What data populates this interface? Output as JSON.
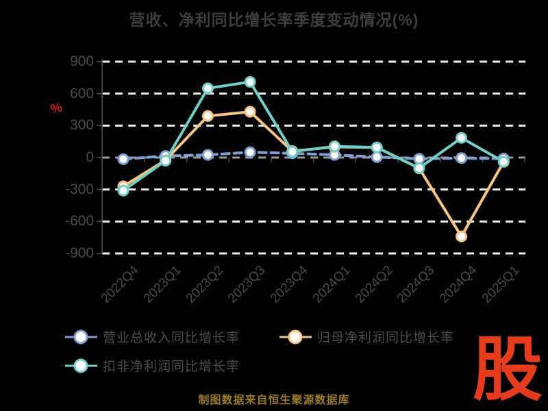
{
  "title": "营收、净利同比增长率季度变动情况(%)",
  "footer_note": "制图数据来自恒生聚源数据库",
  "logo_text": "股",
  "colors": {
    "background": "#000000",
    "title_text": "#3d3d3d",
    "axis_label": "#4a4a4a",
    "grid_line": "#ededed",
    "zero_grid_line": "#9a9a9a",
    "axis_line": "#4f4f4f",
    "unit_label_red": "#c41a1a",
    "footer_gold": "#9a7a22",
    "logo_red": "#e63c1e",
    "marker_fill": "#fdfdfd"
  },
  "chart_data": {
    "type": "line",
    "title": "营收、净利同比增长率季度变动情况(%)",
    "xlabel": "",
    "ylabel": "%",
    "ylim": [
      -900,
      900
    ],
    "y_ticks": [
      900,
      600,
      300,
      0,
      -300,
      -600,
      -900
    ],
    "grid": true,
    "grid_style": "dashed",
    "legend_position": "bottom-left",
    "categories": [
      "2022Q4",
      "2023Q1",
      "2023Q2",
      "2023Q3",
      "2023Q4",
      "2024Q1",
      "2024Q2",
      "2024Q3",
      "2024Q4",
      "2025Q1"
    ],
    "series": [
      {
        "name": "营业总收入同比增长率",
        "color": "#7f9fd3",
        "line_style": "dashed",
        "values": [
          -15,
          15,
          25,
          50,
          40,
          25,
          5,
          -12,
          -5,
          -10
        ]
      },
      {
        "name": "归母净利润同比增长率",
        "color": "#f8c585",
        "line_style": "solid",
        "values": [
          -270,
          -25,
          390,
          430,
          60,
          100,
          95,
          -100,
          -740,
          -40
        ]
      },
      {
        "name": "扣非净利润同比增长率",
        "color": "#72cec7",
        "line_style": "solid",
        "values": [
          -310,
          -30,
          650,
          710,
          55,
          105,
          95,
          -100,
          185,
          -40
        ]
      }
    ]
  }
}
